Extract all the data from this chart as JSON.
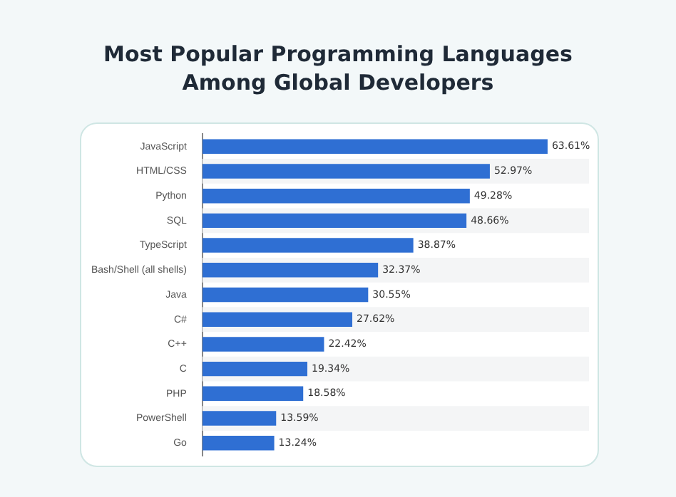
{
  "chart_data": {
    "type": "bar",
    "orientation": "horizontal",
    "title": "Most Popular Programming Languages Among Global Developers",
    "categories": [
      "JavaScript",
      "HTML/CSS",
      "Python",
      "SQL",
      "TypeScript",
      "Bash/Shell (all shells)",
      "Java",
      "C#",
      "C++",
      "C",
      "PHP",
      "PowerShell",
      "Go"
    ],
    "values": [
      63.61,
      52.97,
      49.28,
      48.66,
      38.87,
      32.37,
      30.55,
      27.62,
      22.42,
      19.34,
      18.58,
      13.59,
      13.24
    ],
    "value_labels": [
      "63.61%",
      "52.97%",
      "49.28%",
      "48.66%",
      "38.87%",
      "32.37%",
      "30.55%",
      "27.62%",
      "22.42%",
      "19.34%",
      "18.58%",
      "13.59%",
      "13.24%"
    ],
    "color": "#2f6fd3",
    "tick_labels": "y"
  }
}
